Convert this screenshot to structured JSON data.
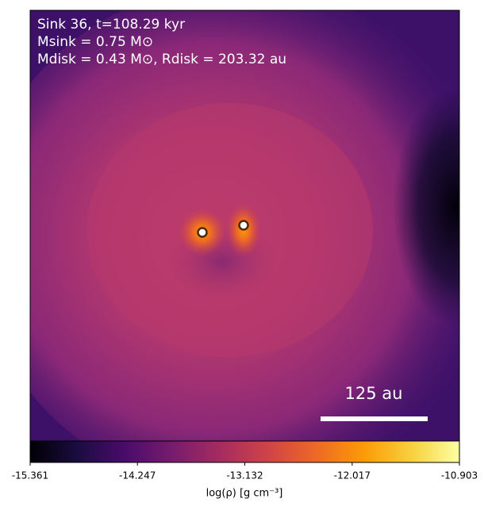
{
  "chart_data": {
    "type": "image",
    "annotations": [
      "Sink 36, t=108.29 kyr",
      "Msink = 0.75 M⊙",
      "Mdisk = 0.43 M⊙, Rdisk = 203.32 au"
    ],
    "scale_bar_label": "125 au",
    "colorbar": {
      "label": "log(ρ) [g cm⁻³]",
      "lim": [
        -15.361,
        -10.903
      ],
      "ticks": [
        -15.361,
        -14.247,
        -13.132,
        -12.017,
        -10.903
      ],
      "colors": [
        "#000004",
        "#1b0c41",
        "#4a0c6b",
        "#781c6d",
        "#a52c60",
        "#cf4446",
        "#ed6925",
        "#fb9b06",
        "#f7d13d",
        "#fcffa4"
      ]
    }
  }
}
